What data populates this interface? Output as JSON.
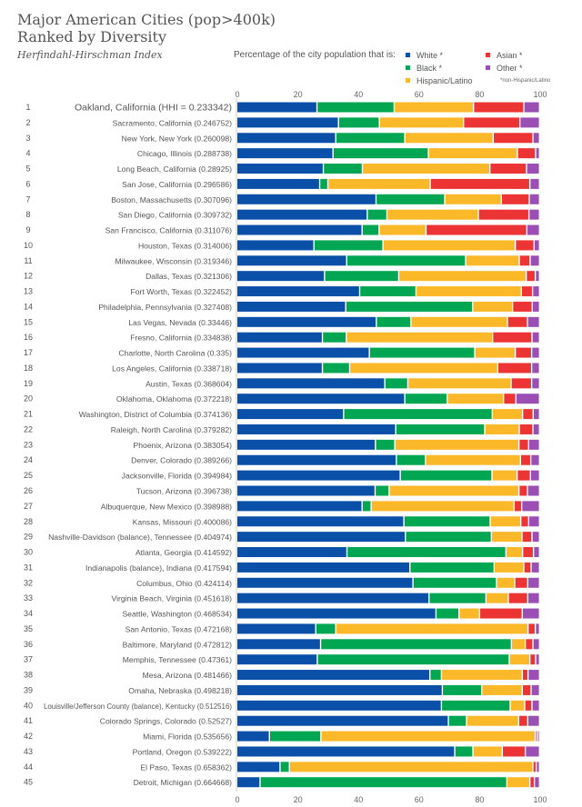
{
  "chart_data": {
    "type": "bar",
    "orientation": "horizontal",
    "stacked": true,
    "title": "Major American Cities (pop>400k)",
    "title_line2": "Ranked by Diversity",
    "subtitle": "Herfindahl-Hirschman Index",
    "legend_prompt": "Percentage of the city population that is:",
    "footnote": "*non-Hispanic/Latino",
    "xlim": [
      0,
      100
    ],
    "xticks": [
      "0",
      "20",
      "40",
      "60",
      "80",
      "100"
    ],
    "series": [
      {
        "key": "white",
        "name": "White *",
        "color": "#0a4fa8"
      },
      {
        "key": "black",
        "name": "Black *",
        "color": "#00a651"
      },
      {
        "key": "hispanic",
        "name": "Hispanic/Latino",
        "color": "#fbb829"
      },
      {
        "key": "asian",
        "name": "Asian *",
        "color": "#ec3434"
      },
      {
        "key": "other",
        "name": "Other *",
        "color": "#9b4fb5"
      }
    ],
    "rows": [
      {
        "rank": "1",
        "label": "Oakland, California (HHI = 0.233342)",
        "white": 26.5,
        "black": 25.5,
        "hispanic": 26.2,
        "asian": 16.6,
        "other": 5.2
      },
      {
        "rank": "2",
        "label": "Sacramento, California (0.246752)",
        "white": 33.6,
        "black": 13.5,
        "hispanic": 27.8,
        "asian": 18.6,
        "other": 6.5
      },
      {
        "rank": "3",
        "label": "New York, New York (0.260098)",
        "white": 32.7,
        "black": 22.8,
        "hispanic": 29.2,
        "asian": 13.1,
        "other": 2.2
      },
      {
        "rank": "4",
        "label": "Chicago, Illinois (0.288738)",
        "white": 31.8,
        "black": 31.5,
        "hispanic": 29.4,
        "asian": 6.0,
        "other": 1.3
      },
      {
        "rank": "5",
        "label": "Long Beach, California (0.28925)",
        "white": 28.6,
        "black": 12.9,
        "hispanic": 42.1,
        "asian": 12.1,
        "other": 4.3
      },
      {
        "rank": "6",
        "label": "San Jose, California (0.296586)",
        "white": 27.4,
        "black": 2.7,
        "hispanic": 33.8,
        "asian": 32.9,
        "other": 3.2
      },
      {
        "rank": "7",
        "label": "Boston, Massachusetts (0.307096)",
        "white": 46.0,
        "black": 22.7,
        "hispanic": 18.7,
        "asian": 9.2,
        "other": 3.4
      },
      {
        "rank": "8",
        "label": "San Diego, California (0.309732)",
        "white": 43.1,
        "black": 6.5,
        "hispanic": 30.2,
        "asian": 16.7,
        "other": 3.5
      },
      {
        "rank": "9",
        "label": "San Francisco, California (0.311076)",
        "white": 41.4,
        "black": 5.6,
        "hispanic": 15.5,
        "asian": 33.3,
        "other": 4.2
      },
      {
        "rank": "10",
        "label": "Houston, Texas (0.314006)",
        "white": 25.5,
        "black": 22.8,
        "hispanic": 43.7,
        "asian": 6.2,
        "other": 1.8
      },
      {
        "rank": "11",
        "label": "Milwaukee, Wisconsin (0.319346)",
        "white": 36.3,
        "black": 39.3,
        "hispanic": 17.7,
        "asian": 3.6,
        "other": 3.1
      },
      {
        "rank": "12",
        "label": "Dallas, Texas (0.321306)",
        "white": 29.0,
        "black": 24.5,
        "hispanic": 42.1,
        "asian": 3.0,
        "other": 1.4
      },
      {
        "rank": "13",
        "label": "Fort Worth, Texas (0.322452)",
        "white": 40.6,
        "black": 18.6,
        "hispanic": 34.8,
        "asian": 3.7,
        "other": 2.3
      },
      {
        "rank": "14",
        "label": "Philadelphia, Pennsylvania (0.327408)",
        "white": 36.0,
        "black": 41.9,
        "hispanic": 13.2,
        "asian": 6.5,
        "other": 2.4
      },
      {
        "rank": "15",
        "label": "Las Vegas, Nevada (0.33446)",
        "white": 46.1,
        "black": 11.4,
        "hispanic": 31.9,
        "asian": 6.6,
        "other": 4.0
      },
      {
        "rank": "16",
        "label": "Fresno, California (0.334838)",
        "white": 28.3,
        "black": 7.9,
        "hispanic": 48.3,
        "asian": 13.0,
        "other": 2.5
      },
      {
        "rank": "17",
        "label": "Charlotte, North Carolina (0.335)",
        "white": 43.8,
        "black": 34.8,
        "hispanic": 13.4,
        "asian": 5.4,
        "other": 2.6
      },
      {
        "rank": "18",
        "label": "Los Angeles, California (0.338718)",
        "white": 28.3,
        "black": 9.0,
        "hispanic": 48.9,
        "asian": 11.2,
        "other": 2.6
      },
      {
        "rank": "19",
        "label": "Austin, Texas (0.368604)",
        "white": 48.9,
        "black": 7.6,
        "hispanic": 34.1,
        "asian": 6.8,
        "other": 2.6
      },
      {
        "rank": "20",
        "label": "Oklahoma, Oklahoma (0.372218)",
        "white": 55.5,
        "black": 14.0,
        "hispanic": 18.6,
        "asian": 4.1,
        "other": 7.8
      },
      {
        "rank": "21",
        "label": "Washington, District of Columbia (0.374136)",
        "white": 35.3,
        "black": 49.1,
        "hispanic": 10.0,
        "asian": 3.5,
        "other": 2.1
      },
      {
        "rank": "22",
        "label": "Raleigh, North Carolina (0.379282)",
        "white": 52.5,
        "black": 29.4,
        "hispanic": 11.4,
        "asian": 4.5,
        "other": 2.2
      },
      {
        "rank": "23",
        "label": "Phoenix, Arizona (0.383054)",
        "white": 45.8,
        "black": 6.4,
        "hispanic": 41.0,
        "asian": 3.2,
        "other": 3.6
      },
      {
        "rank": "24",
        "label": "Denver, Colorado (0.389266)",
        "white": 52.7,
        "black": 9.6,
        "hispanic": 31.4,
        "asian": 3.4,
        "other": 2.9
      },
      {
        "rank": "25",
        "label": "Jacksonville, Florida (0.394984)",
        "white": 54.0,
        "black": 30.3,
        "hispanic": 8.3,
        "asian": 4.4,
        "other": 3.0
      },
      {
        "rank": "26",
        "label": "Tucson, Arizona (0.396738)",
        "white": 45.7,
        "black": 4.6,
        "hispanic": 42.9,
        "asian": 2.8,
        "other": 4.0
      },
      {
        "rank": "27",
        "label": "Albuquerque, New Mexico (0.398988)",
        "white": 41.4,
        "black": 3.0,
        "hispanic": 47.2,
        "asian": 2.5,
        "other": 5.9
      },
      {
        "rank": "28",
        "label": "Kansas, Missouri (0.400086)",
        "white": 55.2,
        "black": 28.5,
        "hispanic": 10.1,
        "asian": 2.6,
        "other": 3.6
      },
      {
        "rank": "29",
        "label": "Nashville-Davidson (balance), Tennessee (0.404974)",
        "white": 55.7,
        "black": 28.4,
        "hispanic": 10.1,
        "asian": 3.3,
        "other": 2.5
      },
      {
        "rank": "30",
        "label": "Atlanta, Georgia (0.414592)",
        "white": 36.4,
        "black": 52.5,
        "hispanic": 5.5,
        "asian": 3.6,
        "other": 2.0
      },
      {
        "rank": "31",
        "label": "Indianapolis (balance), Indiana (0.417594)",
        "white": 57.2,
        "black": 27.8,
        "hispanic": 9.8,
        "asian": 2.4,
        "other": 2.8
      },
      {
        "rank": "32",
        "label": "Columbus, Ohio (0.424114)",
        "white": 58.2,
        "black": 27.6,
        "hispanic": 6.0,
        "asian": 4.3,
        "other": 3.9
      },
      {
        "rank": "33",
        "label": "Virginia Beach, Virginia (0.451618)",
        "white": 63.5,
        "black": 18.8,
        "hispanic": 7.4,
        "asian": 6.4,
        "other": 3.9
      },
      {
        "rank": "34",
        "label": "Seattle, Washington (0.468534)",
        "white": 65.8,
        "black": 7.6,
        "hispanic": 6.8,
        "asian": 14.1,
        "other": 5.7
      },
      {
        "rank": "35",
        "label": "San Antonio, Texas (0.472168)",
        "white": 26.1,
        "black": 6.6,
        "hispanic": 63.5,
        "asian": 2.4,
        "other": 1.4
      },
      {
        "rank": "36",
        "label": "Baltimore, Maryland (0.472812)",
        "white": 27.7,
        "black": 63.0,
        "hispanic": 4.6,
        "asian": 2.5,
        "other": 2.2
      },
      {
        "rank": "37",
        "label": "Memphis, Tennessee (0.47361)",
        "white": 26.6,
        "black": 63.4,
        "hispanic": 6.8,
        "asian": 1.9,
        "other": 1.3
      },
      {
        "rank": "38",
        "label": "Mesa, Arizona (0.481466)",
        "white": 63.8,
        "black": 3.8,
        "hispanic": 26.7,
        "asian": 1.9,
        "other": 3.8
      },
      {
        "rank": "39",
        "label": "Omaha, Nebraska (0.498218)",
        "white": 67.9,
        "black": 13.0,
        "hispanic": 13.4,
        "asian": 2.9,
        "other": 2.8
      },
      {
        "rank": "40",
        "label": "Louisville/Jefferson County (balance), Kentucky (0.512516)",
        "white": 67.6,
        "black": 22.7,
        "hispanic": 4.8,
        "asian": 2.4,
        "other": 2.5
      },
      {
        "rank": "41",
        "label": "Colorado Springs, Colorado (0.52527)",
        "white": 69.9,
        "black": 6.0,
        "hispanic": 17.2,
        "asian": 3.0,
        "other": 3.9
      },
      {
        "rank": "42",
        "label": "Miami, Florida (0.535656)",
        "white": 10.8,
        "black": 17.0,
        "hispanic": 70.8,
        "asian": 0.7,
        "other": 0.7
      },
      {
        "rank": "43",
        "label": "Portland, Oregon (0.539222)",
        "white": 72.0,
        "black": 6.0,
        "hispanic": 9.7,
        "asian": 7.6,
        "other": 4.7
      },
      {
        "rank": "44",
        "label": "El Paso, Texas (0.658362)",
        "white": 14.3,
        "black": 3.1,
        "hispanic": 80.4,
        "asian": 1.1,
        "other": 1.1
      },
      {
        "rank": "45",
        "label": "Detroit, Michigan (0.664668)",
        "white": 7.7,
        "black": 81.5,
        "hispanic": 7.6,
        "asian": 1.5,
        "other": 1.7
      }
    ]
  }
}
